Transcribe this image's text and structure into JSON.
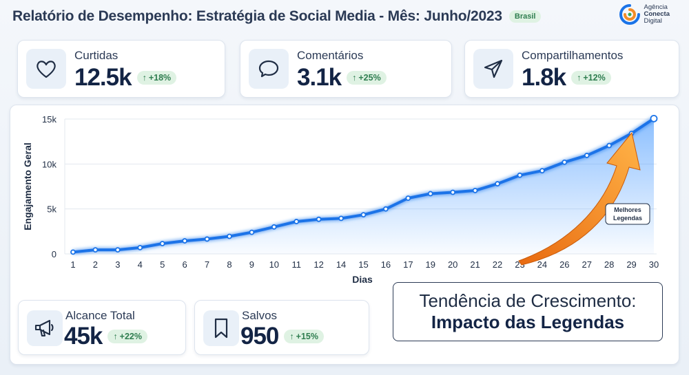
{
  "header": {
    "title": "Relatório de Desempenho: Estratégia de Social Media - Mês: Junho/2023",
    "country": "Brasil",
    "brand": {
      "line1": "Agência",
      "line2": "Conecta",
      "line3": "Digital"
    }
  },
  "stats": [
    {
      "label": "Curtidas",
      "value": "12.5k",
      "change": "+18%",
      "icon": "heart-icon"
    },
    {
      "label": "Comentários",
      "value": "3.1k",
      "change": "+25%",
      "icon": "speech-bubble-icon"
    },
    {
      "label": "Compartilhamentos",
      "value": "1.8k",
      "change": "+12%",
      "icon": "send-icon"
    },
    {
      "label": "Alcance Total",
      "value": "45k",
      "change": "+22%",
      "icon": "megaphone-icon"
    },
    {
      "label": "Salvos",
      "value": "950",
      "change": "+15%",
      "icon": "bookmark-icon"
    }
  ],
  "callout": {
    "line1": "Tendência de Crescimento:",
    "line2": "Impacto das Legendas"
  },
  "annotation": {
    "line1": "Melhores",
    "line2": "Legendas"
  },
  "colors": {
    "line": "#1a73e8",
    "arrow": "#f28c28",
    "positive": "#2e7d4f",
    "text": "#132445"
  },
  "chart_data": {
    "type": "area",
    "xlabel": "Dias",
    "ylabel": "Engajamento Geral",
    "ylim": [
      0,
      15000
    ],
    "y_ticks": [
      "0",
      "5k",
      "10k",
      "15k"
    ],
    "y_tick_values": [
      0,
      5000,
      10000,
      15000
    ],
    "x": [
      "1",
      "2",
      "3",
      "4",
      "5",
      "6",
      "7",
      "8",
      "9",
      "10",
      "11",
      "12",
      "14",
      "15",
      "16",
      "17",
      "19",
      "20",
      "21",
      "22",
      "23",
      "24",
      "26",
      "27",
      "28",
      "29",
      "30"
    ],
    "values": [
      200,
      450,
      450,
      700,
      1150,
      1450,
      1650,
      1950,
      2400,
      3000,
      3600,
      3850,
      3950,
      4350,
      5000,
      6200,
      6700,
      6850,
      7050,
      7800,
      8750,
      9250,
      10200,
      10950,
      12050,
      13400,
      15050
    ],
    "grid": true
  }
}
